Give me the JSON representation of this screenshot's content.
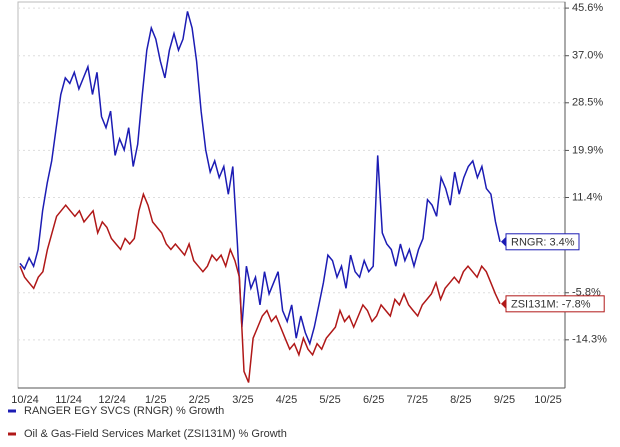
{
  "chart_data": {
    "type": "line",
    "xticks": [
      "10/24",
      "11/24",
      "12/24",
      "1/25",
      "2/25",
      "3/25",
      "4/25",
      "5/25",
      "6/25",
      "7/25",
      "8/25",
      "9/25",
      "10/25"
    ],
    "ylim": [
      -23,
      46.7
    ],
    "yticks": [
      {
        "value": 45.6,
        "label": "45.6%"
      },
      {
        "value": 37.0,
        "label": "37.0%"
      },
      {
        "value": 28.5,
        "label": "28.5%"
      },
      {
        "value": 19.9,
        "label": "19.9%"
      },
      {
        "value": 11.4,
        "label": "11.4%"
      },
      {
        "value": -5.8,
        "label": "-5.8%"
      },
      {
        "value": -14.3,
        "label": "-14.3%"
      }
    ],
    "grid": true,
    "series": [
      {
        "name": "RANGER EGY SVCS (RNGR) % Growth",
        "end_label": "RNGR: 3.4%",
        "color": "#1c1cb4",
        "values": [
          -0.5,
          -1.5,
          0.5,
          -1,
          2,
          9,
          14,
          18,
          24,
          30,
          33,
          32,
          34,
          31,
          33,
          35,
          30,
          34,
          26,
          24,
          27,
          19,
          22,
          20,
          24,
          17,
          21,
          30,
          38,
          42,
          40,
          36,
          33,
          38,
          41,
          38,
          40,
          45,
          42,
          36,
          27,
          20,
          16,
          18,
          15,
          17,
          12,
          17,
          3,
          -12,
          -1,
          -5,
          -3,
          -8,
          -2,
          -6,
          -4,
          -2,
          -9,
          -11,
          -8,
          -14,
          -10,
          -13,
          -15,
          -12,
          -8,
          -4,
          1,
          0,
          -3,
          -1,
          -5,
          1,
          -2,
          -3,
          0,
          -2,
          -1,
          19,
          5,
          3,
          2,
          -1,
          3,
          0,
          2,
          -1,
          2,
          4,
          11,
          10,
          8,
          15,
          13,
          10,
          16,
          12,
          15,
          17,
          18,
          15,
          17,
          13,
          12,
          7,
          3.4
        ]
      },
      {
        "name": "Oil & Gas-Field Services Market (ZSI131M) % Growth",
        "end_label": "ZSI131M: -7.8%",
        "color": "#b01818",
        "values": [
          -1,
          -3,
          -4,
          -5,
          -3,
          -2,
          2,
          5,
          8,
          9,
          10,
          9,
          8,
          9,
          7,
          8,
          9,
          5,
          7,
          6,
          4,
          3,
          2,
          4,
          3,
          4,
          9,
          12,
          10,
          7,
          6,
          5,
          3,
          2,
          3,
          2,
          1,
          3,
          0,
          -1,
          -2,
          -1,
          1,
          0,
          1,
          -1,
          2,
          0,
          -3,
          -20,
          -22,
          -14,
          -12,
          -10,
          -9,
          -11,
          -10,
          -12,
          -14,
          -16,
          -15,
          -17,
          -14,
          -16,
          -17,
          -15,
          -16,
          -14,
          -13,
          -12,
          -9,
          -11,
          -10,
          -12,
          -10,
          -8,
          -9,
          -11,
          -10,
          -8,
          -9,
          -10,
          -7,
          -8,
          -6,
          -8,
          -9,
          -10,
          -8,
          -7,
          -6,
          -4,
          -7,
          -5,
          -4,
          -3,
          -4,
          -2,
          -1,
          -2,
          -3,
          -1,
          -2,
          -4,
          -6,
          -7.8
        ]
      }
    ]
  }
}
